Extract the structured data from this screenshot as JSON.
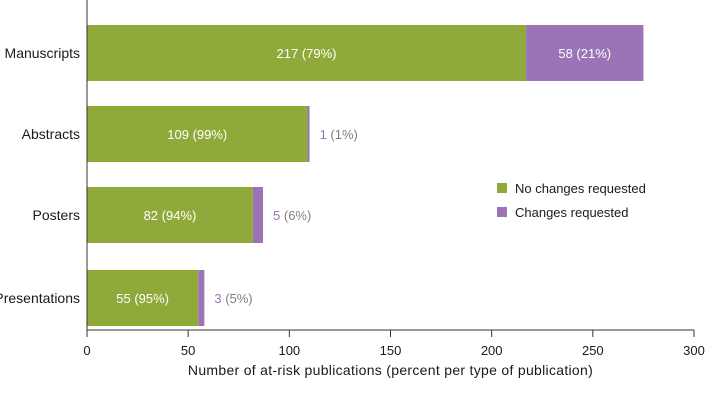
{
  "chart_data": {
    "type": "bar",
    "orientation": "horizontal",
    "stacked": true,
    "categories": [
      "Manuscripts",
      "Abstracts",
      "Posters",
      "Presentations"
    ],
    "series": [
      {
        "name": "No changes requested",
        "color": "#8faa3b",
        "values": [
          217,
          109,
          82,
          55
        ],
        "labels": [
          "217 (79%)",
          "109 (99%)",
          "82 (94%)",
          "55 (95%)"
        ]
      },
      {
        "name": "Changes requested",
        "color": "#9b74b8",
        "values": [
          58,
          1,
          5,
          3
        ],
        "labels": [
          "58 (21%)",
          "1 (1%)",
          "5 (6%)",
          "3 (5%)"
        ]
      }
    ],
    "xlabel": "Number of at-risk publications (percent per type of publication)",
    "xlim": [
      0,
      300
    ],
    "xticks": [
      0,
      50,
      100,
      150,
      200,
      250,
      300
    ],
    "grid": false,
    "legend_position": "right"
  }
}
